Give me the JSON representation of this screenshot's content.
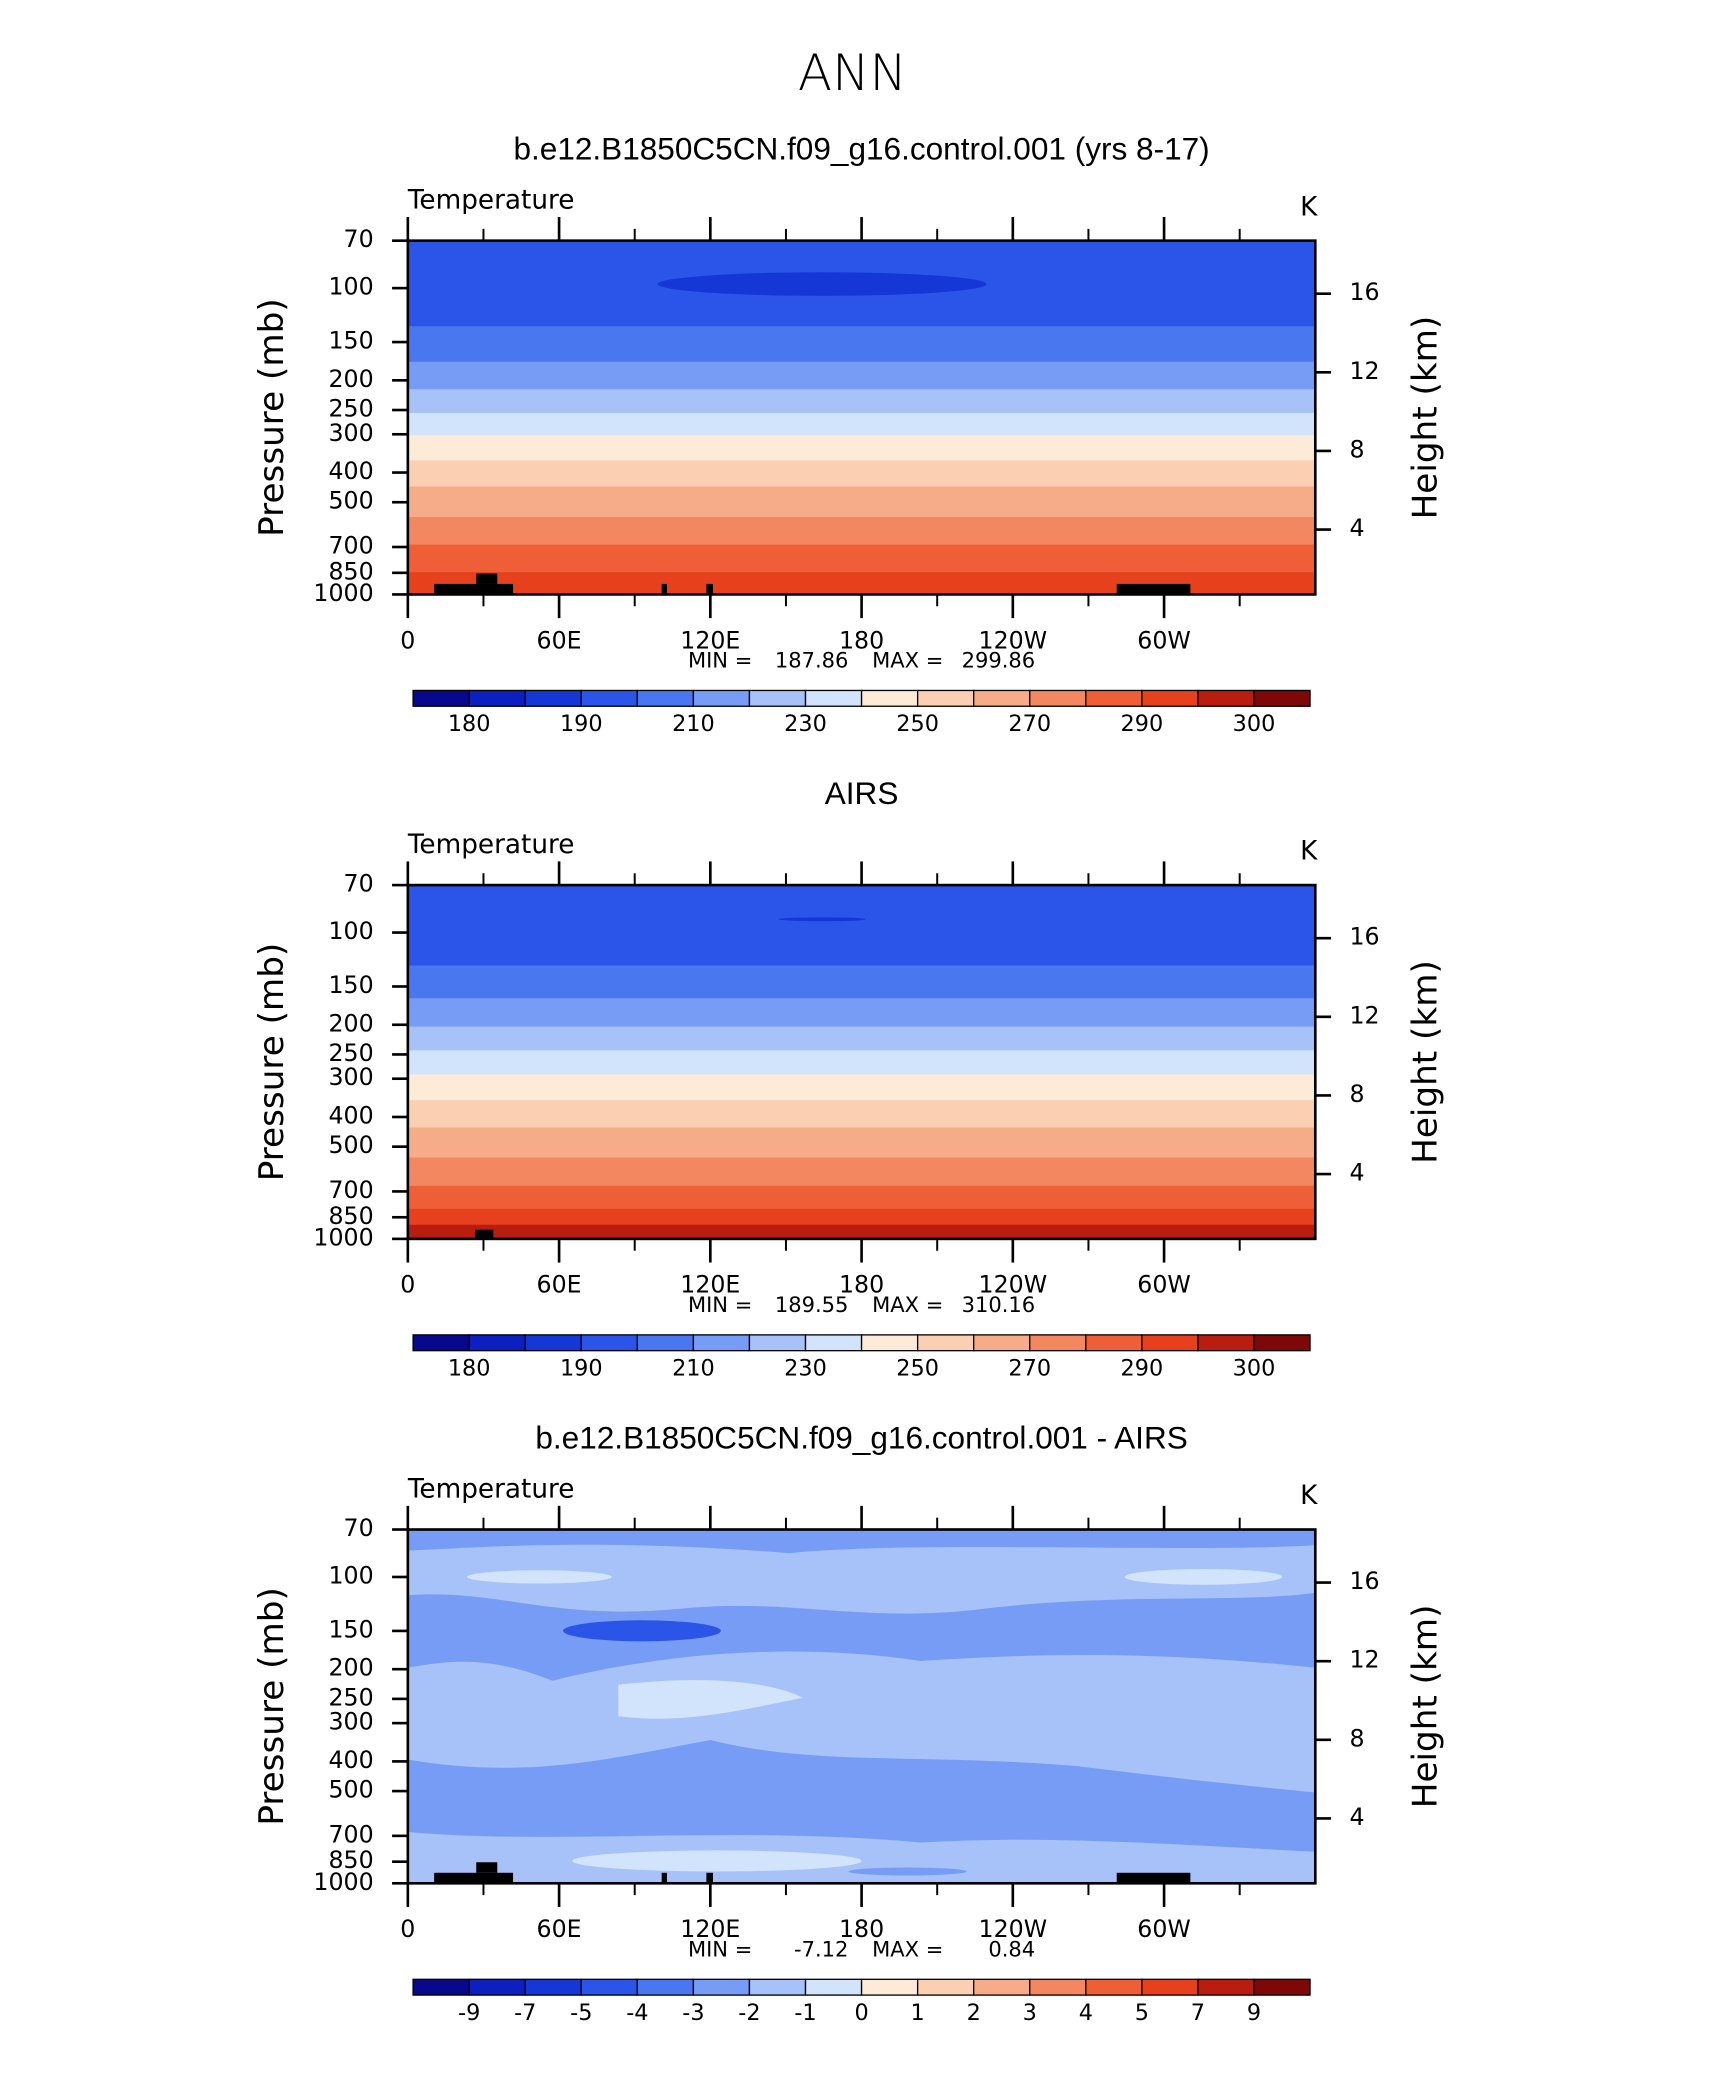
{
  "title": "ANN",
  "chart_data": [
    {
      "type": "contour",
      "title": "b.e12.B1850C5CN.f09_g16.control.001 (yrs 8-17)",
      "subtitle": "Temperature",
      "units": "K",
      "ylabel": "Pressure (mb)",
      "y2label": "Height (km)",
      "log_y": true,
      "ylim": [
        1000,
        70
      ],
      "yticks": [
        70,
        100,
        150,
        200,
        250,
        300,
        400,
        500,
        700,
        850,
        1000
      ],
      "y2lim": [
        0.7,
        18.7
      ],
      "y2ticks": [
        4,
        8,
        12,
        16
      ],
      "xlim": [
        0,
        360
      ],
      "xticks": [
        0,
        {
          "value": 60,
          "label": "60E"
        },
        {
          "value": 120,
          "label": "120E"
        },
        180,
        {
          "value": 240,
          "label": "120W"
        },
        {
          "value": 300,
          "label": "60W"
        }
      ],
      "min_label": "MIN =",
      "min": 187.86,
      "max_label": "MAX =",
      "max": 299.86,
      "colorbar": {
        "labels": [
          180,
          190,
          210,
          230,
          250,
          270,
          290,
          300
        ],
        "colors": [
          "#08088c",
          "#0c1fbf",
          "#1537d6",
          "#2a55e8",
          "#4977f0",
          "#779cf5",
          "#a6c2f8",
          "#d2e4fb",
          "#fdebd8",
          "#fbcfb2",
          "#f7ac89",
          "#f38760",
          "#ef5f37",
          "#e6411c",
          "#b81d0f",
          "#7e0808"
        ]
      }
    },
    {
      "type": "contour",
      "title": "AIRS",
      "subtitle": "Temperature",
      "units": "K",
      "ylabel": "Pressure (mb)",
      "y2label": "Height (km)",
      "log_y": true,
      "ylim": [
        1000,
        70
      ],
      "yticks": [
        70,
        100,
        150,
        200,
        250,
        300,
        400,
        500,
        700,
        850,
        1000
      ],
      "y2lim": [
        0.7,
        18.7
      ],
      "y2ticks": [
        4,
        8,
        12,
        16
      ],
      "xlim": [
        0,
        360
      ],
      "xticks": [
        0,
        {
          "value": 60,
          "label": "60E"
        },
        {
          "value": 120,
          "label": "120E"
        },
        180,
        {
          "value": 240,
          "label": "120W"
        },
        {
          "value": 300,
          "label": "60W"
        }
      ],
      "min_label": "MIN =",
      "min": 189.55,
      "max_label": "MAX =",
      "max": 310.16,
      "colorbar": {
        "labels": [
          180,
          190,
          210,
          230,
          250,
          270,
          290,
          300
        ],
        "colors": [
          "#08088c",
          "#0c1fbf",
          "#1537d6",
          "#2a55e8",
          "#4977f0",
          "#779cf5",
          "#a6c2f8",
          "#d2e4fb",
          "#fdebd8",
          "#fbcfb2",
          "#f7ac89",
          "#f38760",
          "#ef5f37",
          "#e6411c",
          "#b81d0f",
          "#7e0808"
        ]
      }
    },
    {
      "type": "contour",
      "title": "b.e12.B1850C5CN.f09_g16.control.001 - AIRS",
      "subtitle": "Temperature",
      "units": "K",
      "ylabel": "Pressure (mb)",
      "y2label": "Height (km)",
      "log_y": true,
      "ylim": [
        1000,
        70
      ],
      "yticks": [
        70,
        100,
        150,
        200,
        250,
        300,
        400,
        500,
        700,
        850,
        1000
      ],
      "y2lim": [
        0.7,
        18.7
      ],
      "y2ticks": [
        4,
        8,
        12,
        16
      ],
      "xlim": [
        0,
        360
      ],
      "xticks": [
        0,
        {
          "value": 60,
          "label": "60E"
        },
        {
          "value": 120,
          "label": "120E"
        },
        180,
        {
          "value": 240,
          "label": "120W"
        },
        {
          "value": 300,
          "label": "60W"
        }
      ],
      "min_label": "MIN =",
      "min": -7.12,
      "max_label": "MAX =",
      "max": 0.84,
      "colorbar": {
        "labels": [
          -9,
          -7,
          -5,
          -4,
          -3,
          -2,
          -1,
          0,
          1,
          2,
          3,
          4,
          5,
          7,
          9
        ],
        "colors": [
          "#08088c",
          "#0c1fbf",
          "#1537d6",
          "#2a55e8",
          "#4977f0",
          "#779cf5",
          "#a6c2f8",
          "#d2e4fb",
          "#fdebd8",
          "#fbcfb2",
          "#f7ac89",
          "#f38760",
          "#ef5f37",
          "#e6411c",
          "#b81d0f",
          "#7e0808"
        ]
      }
    }
  ]
}
